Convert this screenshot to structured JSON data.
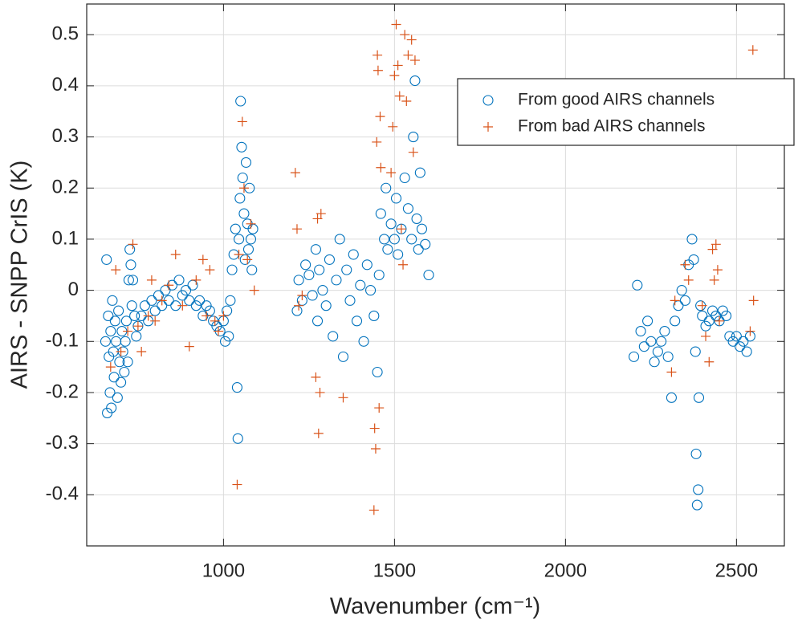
{
  "chart_data": {
    "type": "scatter",
    "xlabel": "Wavenumber (cm⁻¹)",
    "ylabel": "AIRS - SNPP CrIS (K)",
    "xlim": [
      600,
      2640
    ],
    "ylim": [
      -0.5,
      0.56
    ],
    "xticks": [
      1000,
      1500,
      2000,
      2500
    ],
    "yticks": [
      -0.4,
      -0.3,
      -0.2,
      -0.1,
      0,
      0.1,
      0.2,
      0.3,
      0.4,
      0.5
    ],
    "grid": true,
    "legend_loc": "northeast",
    "series": [
      {
        "name": "From good AIRS channels",
        "color": "#0072bd",
        "marker": "circle",
        "x": [
          655,
          658,
          660,
          663,
          665,
          668,
          670,
          672,
          675,
          678,
          680,
          683,
          686,
          690,
          693,
          696,
          700,
          703,
          706,
          710,
          713,
          716,
          720,
          723,
          726,
          729,
          732,
          735,
          740,
          745,
          750,
          760,
          770,
          780,
          790,
          800,
          810,
          820,
          830,
          840,
          850,
          860,
          870,
          880,
          890,
          900,
          910,
          920,
          930,
          940,
          950,
          960,
          970,
          980,
          990,
          1000,
          1005,
          1010,
          1015,
          1020,
          1025,
          1030,
          1035,
          1040,
          1042,
          1045,
          1048,
          1050,
          1053,
          1056,
          1060,
          1063,
          1066,
          1070,
          1073,
          1076,
          1080,
          1083,
          1086,
          1215,
          1220,
          1230,
          1240,
          1250,
          1260,
          1270,
          1275,
          1280,
          1290,
          1300,
          1310,
          1320,
          1330,
          1340,
          1350,
          1360,
          1370,
          1380,
          1390,
          1400,
          1410,
          1420,
          1430,
          1440,
          1450,
          1455,
          1460,
          1470,
          1475,
          1480,
          1490,
          1500,
          1505,
          1510,
          1520,
          1530,
          1540,
          1550,
          1555,
          1560,
          1565,
          1570,
          1575,
          1580,
          1590,
          1600,
          2200,
          2210,
          2220,
          2230,
          2240,
          2250,
          2260,
          2270,
          2280,
          2290,
          2300,
          2310,
          2320,
          2330,
          2340,
          2350,
          2360,
          2370,
          2375,
          2380,
          2382,
          2385,
          2388,
          2390,
          2395,
          2400,
          2410,
          2420,
          2430,
          2440,
          2450,
          2460,
          2470,
          2480,
          2490,
          2500,
          2510,
          2520,
          2530,
          2540
        ],
        "values": [
          -0.1,
          0.06,
          -0.24,
          -0.05,
          -0.13,
          -0.2,
          -0.08,
          -0.23,
          -0.02,
          -0.12,
          -0.17,
          -0.06,
          -0.1,
          -0.21,
          -0.04,
          -0.14,
          -0.18,
          -0.08,
          -0.12,
          -0.16,
          -0.1,
          -0.06,
          -0.14,
          0.02,
          0.08,
          0.05,
          -0.03,
          0.02,
          -0.05,
          -0.09,
          -0.07,
          -0.05,
          -0.03,
          -0.06,
          -0.02,
          -0.04,
          -0.01,
          -0.03,
          0,
          -0.02,
          0.01,
          -0.03,
          0.02,
          -0.01,
          0,
          -0.02,
          0.01,
          -0.03,
          -0.02,
          -0.05,
          -0.03,
          -0.04,
          -0.06,
          -0.07,
          -0.08,
          -0.06,
          -0.1,
          -0.04,
          -0.09,
          -0.02,
          0.04,
          0.07,
          0.12,
          -0.19,
          -0.29,
          0.1,
          0.18,
          0.37,
          0.28,
          0.22,
          0.15,
          0.06,
          0.25,
          0.13,
          0.08,
          0.2,
          0.1,
          0.04,
          0.12,
          -0.04,
          0.02,
          -0.02,
          0.05,
          0.03,
          -0.01,
          0.08,
          -0.06,
          0.04,
          0,
          -0.03,
          0.06,
          -0.09,
          0.02,
          0.1,
          -0.13,
          0.04,
          -0.02,
          0.07,
          -0.06,
          0.01,
          -0.1,
          0.05,
          0,
          -0.05,
          -0.16,
          0.03,
          0.15,
          0.1,
          0.2,
          0.08,
          0.13,
          0.1,
          0.18,
          0.07,
          0.12,
          0.22,
          0.16,
          0.1,
          0.3,
          0.41,
          0.14,
          0.08,
          0.23,
          0.12,
          0.09,
          0.03,
          -0.13,
          0.01,
          -0.08,
          -0.11,
          -0.06,
          -0.1,
          -0.14,
          -0.12,
          -0.1,
          -0.08,
          -0.13,
          -0.21,
          -0.06,
          -0.03,
          0,
          -0.02,
          0.05,
          0.1,
          0.06,
          -0.12,
          -0.32,
          -0.42,
          -0.39,
          -0.21,
          -0.03,
          -0.05,
          -0.07,
          -0.06,
          -0.04,
          -0.05,
          -0.06,
          -0.04,
          -0.05,
          -0.09,
          -0.1,
          -0.09,
          -0.11,
          -0.1,
          -0.12,
          -0.09
        ]
      },
      {
        "name": "From bad AIRS channels",
        "color": "#d95319",
        "marker": "plus",
        "x": [
          670,
          685,
          700,
          720,
          735,
          750,
          760,
          780,
          790,
          800,
          820,
          840,
          860,
          880,
          900,
          920,
          940,
          950,
          960,
          975,
          985,
          1000,
          1040,
          1045,
          1055,
          1060,
          1070,
          1080,
          1090,
          1210,
          1215,
          1220,
          1230,
          1270,
          1275,
          1278,
          1282,
          1285,
          1350,
          1440,
          1442,
          1445,
          1448,
          1450,
          1452,
          1455,
          1458,
          1460,
          1490,
          1495,
          1500,
          1505,
          1510,
          1515,
          1520,
          1525,
          1530,
          1535,
          1540,
          1550,
          1555,
          1560,
          2310,
          2320,
          2350,
          2360,
          2400,
          2410,
          2420,
          2430,
          2435,
          2440,
          2445,
          2450,
          2540,
          2548,
          2550
        ],
        "values": [
          -0.15,
          0.04,
          -0.12,
          -0.08,
          0.09,
          -0.07,
          -0.12,
          -0.05,
          0.02,
          -0.06,
          -0.02,
          0.01,
          0.07,
          -0.03,
          -0.11,
          0.02,
          0.06,
          -0.05,
          0.04,
          -0.06,
          -0.08,
          -0.05,
          -0.38,
          0.07,
          0.33,
          0.2,
          0.06,
          0.13,
          0,
          0.23,
          0.12,
          -0.03,
          -0.01,
          -0.17,
          0.14,
          -0.28,
          -0.2,
          0.15,
          -0.21,
          -0.43,
          -0.27,
          -0.31,
          0.29,
          0.46,
          0.43,
          -0.23,
          0.34,
          0.24,
          0.23,
          0.32,
          0.42,
          0.52,
          0.44,
          0.38,
          0.12,
          0.05,
          0.5,
          0.37,
          0.46,
          0.49,
          0.27,
          0.45,
          -0.16,
          -0.02,
          0.05,
          0.02,
          -0.03,
          -0.09,
          -0.14,
          0.08,
          0.02,
          0.09,
          0.04,
          -0.06,
          -0.08,
          0.47,
          -0.02
        ]
      }
    ]
  }
}
